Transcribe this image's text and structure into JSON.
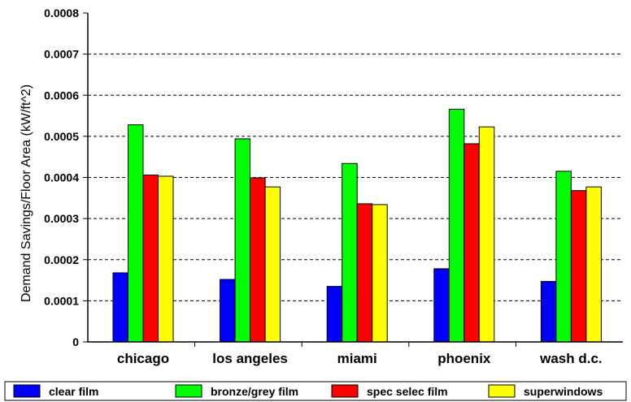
{
  "chart_data": {
    "type": "bar",
    "title": "",
    "xlabel": "",
    "ylabel": "Demand Savings/Floor Area (kW/ft^2)",
    "ylim": [
      0,
      0.0008
    ],
    "yticks": [
      "0",
      "0.0001",
      "0.0002",
      "0.0003",
      "0.0004",
      "0.0005",
      "0.0006",
      "0.0007",
      "0.0008"
    ],
    "grid": true,
    "legend_position": "bottom",
    "categories": [
      "chicago",
      "los angeles",
      "miami",
      "phoenix",
      "wash d.c."
    ],
    "series": [
      {
        "name": "clear film",
        "color": "#0000ff",
        "values": [
          0.000168,
          0.000152,
          0.000135,
          0.000178,
          0.000147
        ]
      },
      {
        "name": "bronze/grey film",
        "color": "#00ff00",
        "values": [
          0.000528,
          0.000494,
          0.000434,
          0.000566,
          0.000415
        ]
      },
      {
        "name": "spec selec film",
        "color": "#ff0000",
        "values": [
          0.000406,
          0.000399,
          0.000336,
          0.000482,
          0.000368
        ]
      },
      {
        "name": "superwindows",
        "color": "#ffff00",
        "values": [
          0.000403,
          0.000377,
          0.000334,
          0.000523,
          0.000377
        ]
      }
    ]
  }
}
